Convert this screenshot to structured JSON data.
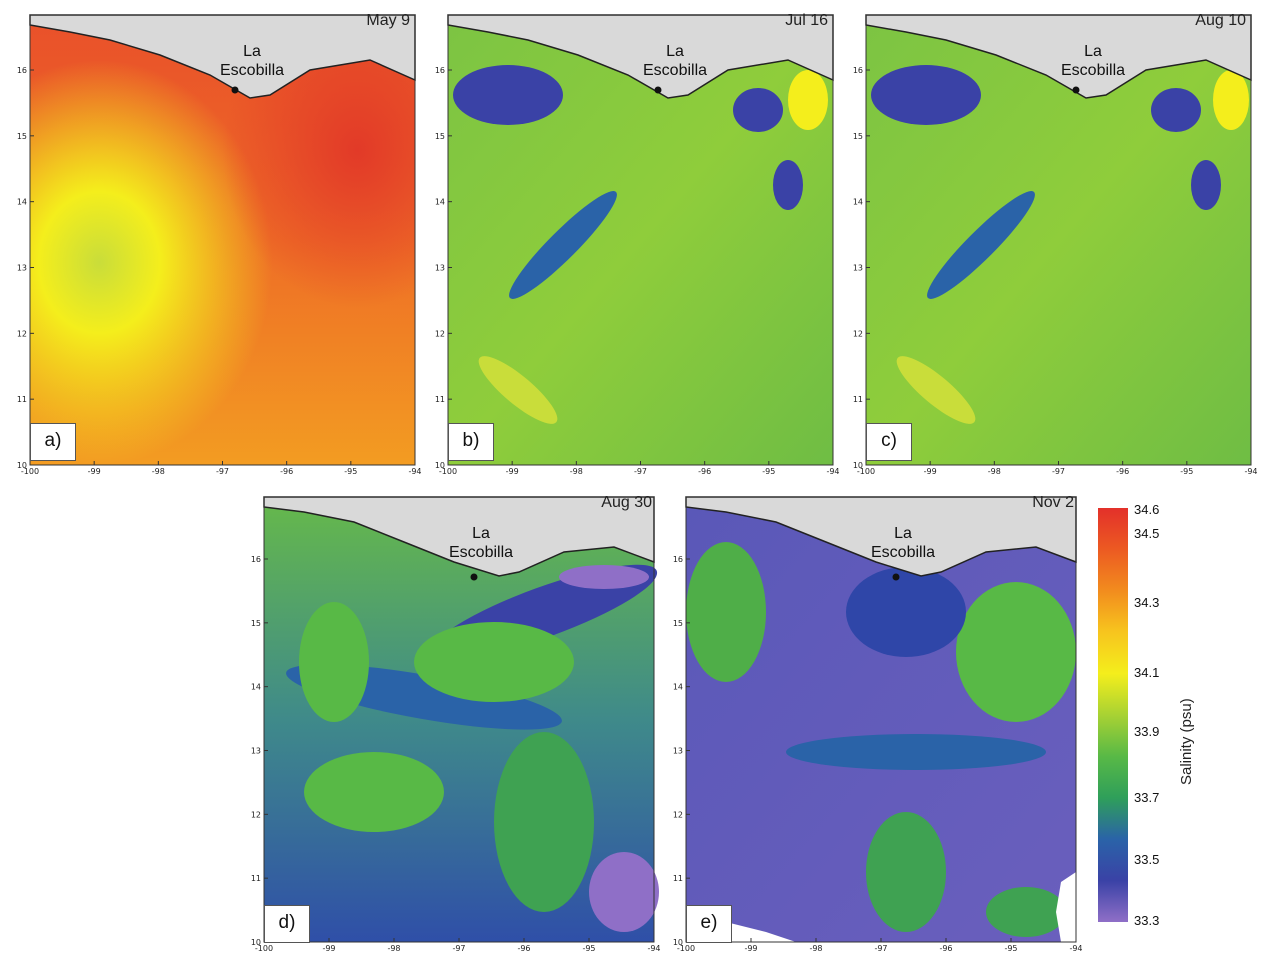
{
  "location_label": "La Escobilla",
  "location_lines": [
    "La",
    "Escobilla"
  ],
  "lon_ticks": [
    "-100",
    "-99",
    "-98",
    "-97",
    "-96",
    "-95",
    "-94"
  ],
  "lat_ticks": [
    "10",
    "11",
    "12",
    "13",
    "14",
    "15",
    "16"
  ],
  "panels": [
    {
      "letter": "a)",
      "date": "May 9"
    },
    {
      "letter": "b)",
      "date": "Jul 16"
    },
    {
      "letter": "c)",
      "date": "Aug 10"
    },
    {
      "letter": "d)",
      "date": "Aug 30"
    },
    {
      "letter": "e)",
      "date": "Nov 2"
    }
  ],
  "colorbar": {
    "title": "Salinity (psu)",
    "ticks": [
      "34.6",
      "34.5",
      "34.3",
      "34.1",
      "33.9",
      "33.7",
      "33.5",
      "33.3"
    ],
    "colors": [
      "#e3302a",
      "#ec5a22",
      "#f28c1e",
      "#f7c51e",
      "#f4ee1c",
      "#a8d233",
      "#58b946",
      "#2f9f5a",
      "#2a63a8",
      "#3a42a6",
      "#8f6fc7"
    ]
  },
  "legend": {
    "land_color": "#d9d9d9",
    "coast_color": "#222222"
  }
}
